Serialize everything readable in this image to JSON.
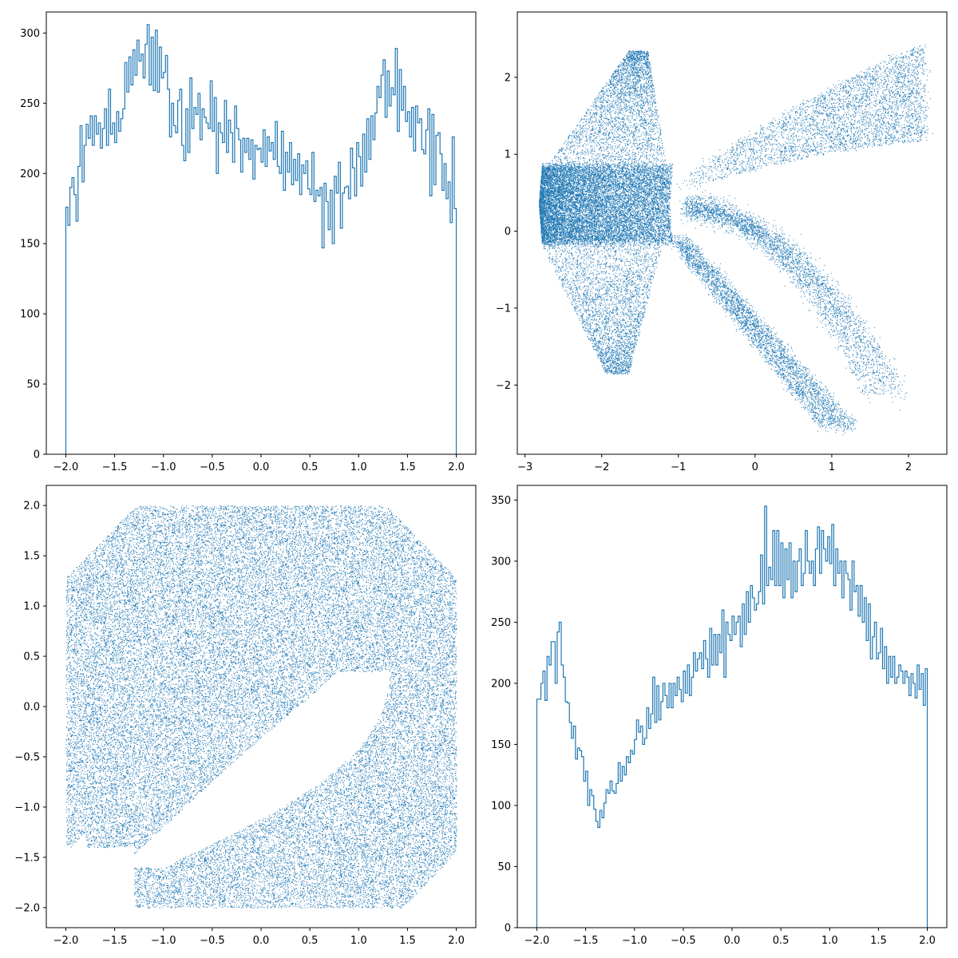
{
  "colors": {
    "series": "#1f77b4",
    "axes": "#000000",
    "background": "#ffffff"
  },
  "chart_data": [
    {
      "type": "histogram-step",
      "position": "top-left",
      "title": "",
      "xlabel": "",
      "ylabel": "",
      "xlim": [
        -2.2,
        2.2
      ],
      "ylim": [
        0,
        315
      ],
      "xticks": [
        -2.0,
        -1.5,
        -1.0,
        -0.5,
        0.0,
        0.5,
        1.0,
        1.5,
        2.0
      ],
      "xtick_labels": [
        "−2.0",
        "−1.5",
        "−1.0",
        "−0.5",
        "0.0",
        "0.5",
        "1.0",
        "1.5",
        "2.0"
      ],
      "yticks": [
        0,
        50,
        100,
        150,
        200,
        250,
        300
      ],
      "ytick_labels": [
        "0",
        "50",
        "100",
        "150",
        "200",
        "250",
        "300"
      ],
      "bin_range": [
        -2.0,
        2.0
      ],
      "counts": [
        176,
        163,
        190,
        197,
        185,
        166,
        205,
        234,
        194,
        220,
        235,
        225,
        241,
        220,
        241,
        228,
        236,
        218,
        232,
        246,
        220,
        260,
        228,
        236,
        222,
        244,
        230,
        239,
        246,
        279,
        258,
        283,
        263,
        288,
        270,
        295,
        280,
        285,
        268,
        292,
        306,
        263,
        297,
        259,
        302,
        258,
        290,
        268,
        272,
        284,
        260,
        226,
        250,
        234,
        229,
        252,
        260,
        220,
        209,
        246,
        215,
        268,
        232,
        247,
        242,
        257,
        224,
        246,
        240,
        236,
        232,
        266,
        230,
        254,
        200,
        236,
        229,
        222,
        252,
        215,
        238,
        229,
        208,
        248,
        232,
        224,
        201,
        225,
        215,
        225,
        210,
        224,
        196,
        220,
        217,
        218,
        208,
        231,
        205,
        226,
        216,
        222,
        210,
        237,
        205,
        200,
        230,
        188,
        215,
        201,
        222,
        192,
        210,
        195,
        214,
        185,
        206,
        200,
        209,
        189,
        185,
        215,
        180,
        188,
        184,
        190,
        147,
        193,
        180,
        160,
        188,
        150,
        198,
        186,
        208,
        161,
        186,
        190,
        191,
        182,
        218,
        204,
        184,
        222,
        212,
        191,
        228,
        201,
        239,
        210,
        241,
        224,
        243,
        262,
        254,
        270,
        281,
        240,
        273,
        248,
        261,
        256,
        289,
        230,
        274,
        245,
        262,
        237,
        244,
        226,
        247,
        216,
        248,
        236,
        239,
        217,
        214,
        231,
        246,
        184,
        242,
        192,
        227,
        229,
        214,
        188,
        207,
        182,
        194,
        165,
        226,
        175
      ]
    },
    {
      "type": "scatter",
      "position": "top-right",
      "title": "",
      "xlabel": "",
      "ylabel": "",
      "xlim": [
        -3.1,
        2.5
      ],
      "ylim": [
        -2.9,
        2.85
      ],
      "xticks": [
        -3,
        -2,
        -1,
        0,
        1,
        2
      ],
      "xtick_labels": [
        "−3",
        "−2",
        "−1",
        "0",
        "1",
        "2"
      ],
      "yticks": [
        -2,
        -1,
        0,
        1,
        2
      ],
      "ytick_labels": [
        "−2",
        "−1",
        "0",
        "1",
        "2"
      ],
      "density_regions": [
        {
          "region": "dense core",
          "x_range": [
            -2.8,
            -1.1
          ],
          "y_range": [
            -0.15,
            0.85
          ],
          "points": 14000
        },
        {
          "region": "upper fan",
          "x_range": [
            -2.4,
            -1.2
          ],
          "y_range": [
            0.8,
            2.4
          ],
          "points": 3500
        },
        {
          "region": "lower fan",
          "x_range": [
            -2.8,
            -1.2
          ],
          "y_range": [
            -1.85,
            -0.15
          ],
          "points": 3500
        },
        {
          "region": "upper-right arm",
          "x_range": [
            -1.0,
            2.3
          ],
          "y_range": [
            0.5,
            2.55
          ],
          "points": 4000
        },
        {
          "region": "middle-right arm",
          "x_range": [
            -1.0,
            1.8
          ],
          "y_range": [
            -2.2,
            0.55
          ],
          "points": 3500
        },
        {
          "region": "lower diagonal arm",
          "x_range": [
            -1.0,
            1.2
          ],
          "y_range": [
            -2.65,
            -0.1
          ],
          "points": 3500
        }
      ]
    },
    {
      "type": "scatter",
      "position": "bottom-left",
      "title": "",
      "xlabel": "",
      "ylabel": "",
      "xlim": [
        -2.2,
        2.2
      ],
      "ylim": [
        -2.2,
        2.2
      ],
      "xticks": [
        -2.0,
        -1.5,
        -1.0,
        -0.5,
        0.0,
        0.5,
        1.0,
        1.5,
        2.0
      ],
      "xtick_labels": [
        "−2.0",
        "−1.5",
        "−1.0",
        "−0.5",
        "0.0",
        "0.5",
        "1.0",
        "1.5",
        "2.0"
      ],
      "yticks": [
        -2.0,
        -1.5,
        -1.0,
        -0.5,
        0.0,
        0.5,
        1.0,
        1.5,
        2.0
      ],
      "ytick_labels": [
        "−2.0",
        "−1.5",
        "−1.0",
        "−0.5",
        "0.0",
        "0.5",
        "1.0",
        "1.5",
        "2.0"
      ],
      "domain": [
        -2.0,
        2.0
      ],
      "points": 42000,
      "excluded_region": "crescent-shaped empty band curving from (1.0, 0.4) down to (-1.3, -1.5)"
    },
    {
      "type": "histogram-step",
      "position": "bottom-right",
      "title": "",
      "xlabel": "",
      "ylabel": "",
      "xlim": [
        -2.2,
        2.2
      ],
      "ylim": [
        0,
        362
      ],
      "xticks": [
        -2.0,
        -1.5,
        -1.0,
        -0.5,
        0.0,
        0.5,
        1.0,
        1.5,
        2.0
      ],
      "xtick_labels": [
        "−2.0",
        "−1.5",
        "−1.0",
        "−0.5",
        "0.0",
        "0.5",
        "1.0",
        "1.5",
        "2.0"
      ],
      "yticks": [
        0,
        50,
        100,
        150,
        200,
        250,
        300,
        350
      ],
      "ytick_labels": [
        "0",
        "50",
        "100",
        "150",
        "200",
        "250",
        "300",
        "350"
      ],
      "bin_range": [
        -2.0,
        2.0
      ],
      "counts": [
        187,
        187,
        200,
        210,
        186,
        222,
        215,
        234,
        234,
        200,
        242,
        250,
        215,
        205,
        185,
        184,
        168,
        155,
        165,
        138,
        147,
        145,
        140,
        120,
        128,
        100,
        113,
        108,
        97,
        87,
        82,
        96,
        90,
        102,
        113,
        110,
        120,
        112,
        110,
        118,
        135,
        120,
        132,
        125,
        140,
        135,
        145,
        142,
        154,
        170,
        160,
        165,
        150,
        155,
        180,
        163,
        175,
        205,
        168,
        198,
        170,
        185,
        200,
        190,
        180,
        200,
        180,
        200,
        190,
        205,
        195,
        185,
        210,
        192,
        215,
        190,
        205,
        225,
        210,
        220,
        225,
        212,
        235,
        220,
        205,
        245,
        215,
        240,
        215,
        240,
        225,
        260,
        205,
        250,
        240,
        235,
        255,
        240,
        250,
        255,
        230,
        265,
        240,
        275,
        250,
        280,
        270,
        260,
        265,
        275,
        305,
        265,
        345,
        280,
        295,
        285,
        325,
        280,
        325,
        280,
        315,
        270,
        310,
        285,
        315,
        270,
        300,
        275,
        300,
        310,
        280,
        290,
        325,
        300,
        290,
        300,
        280,
        310,
        328,
        290,
        325,
        310,
        300,
        320,
        298,
        330,
        280,
        310,
        290,
        300,
        270,
        300,
        290,
        285,
        260,
        300,
        275,
        280,
        255,
        280,
        250,
        270,
        235,
        265,
        220,
        238,
        250,
        220,
        225,
        245,
        212,
        230,
        200,
        222,
        205,
        222,
        200,
        205,
        215,
        210,
        200,
        210,
        205,
        190,
        208,
        200,
        188,
        215,
        195,
        208,
        182,
        212
      ]
    }
  ]
}
